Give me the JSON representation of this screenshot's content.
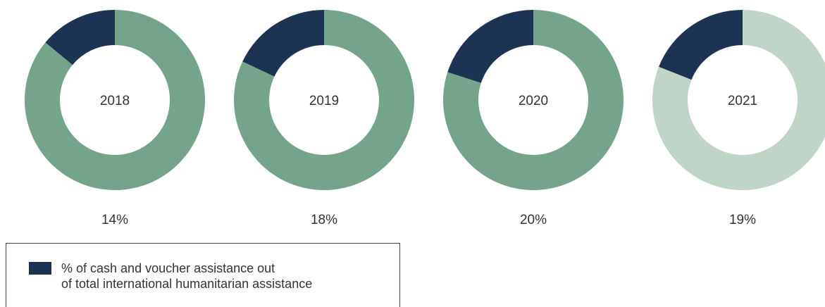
{
  "chart_data": [
    {
      "type": "pie",
      "center_label": "2018",
      "value_label": "14%",
      "slices": [
        {
          "name": "% of cash and voucher assistance out of total international humanitarian assistance",
          "value": 14,
          "color": "#1d3354"
        },
        {
          "name": "",
          "value": 86,
          "color": "#74a58c"
        }
      ]
    },
    {
      "type": "pie",
      "center_label": "2019",
      "value_label": "18%",
      "slices": [
        {
          "name": "% of cash and voucher assistance out of total international humanitarian assistance",
          "value": 18,
          "color": "#1d3354"
        },
        {
          "name": "",
          "value": 82,
          "color": "#74a58c"
        }
      ]
    },
    {
      "type": "pie",
      "center_label": "2020",
      "value_label": "20%",
      "slices": [
        {
          "name": "% of cash and voucher assistance out of total international humanitarian assistance",
          "value": 20,
          "color": "#1d3354"
        },
        {
          "name": "",
          "value": 80,
          "color": "#74a58c"
        }
      ]
    },
    {
      "type": "pie",
      "center_label": "2021",
      "value_label": "19%",
      "slices": [
        {
          "name": "% of cash and voucher assistance out of total international humanitarian assistance",
          "value": 19,
          "color": "#1d3354"
        },
        {
          "name": "",
          "value": 81,
          "color": "#c0d4c7"
        }
      ]
    }
  ],
  "legend": {
    "line1": "% of cash and voucher assistance out",
    "line2": "of total international humanitarian assistance",
    "swatch_color": "#1d3354"
  }
}
